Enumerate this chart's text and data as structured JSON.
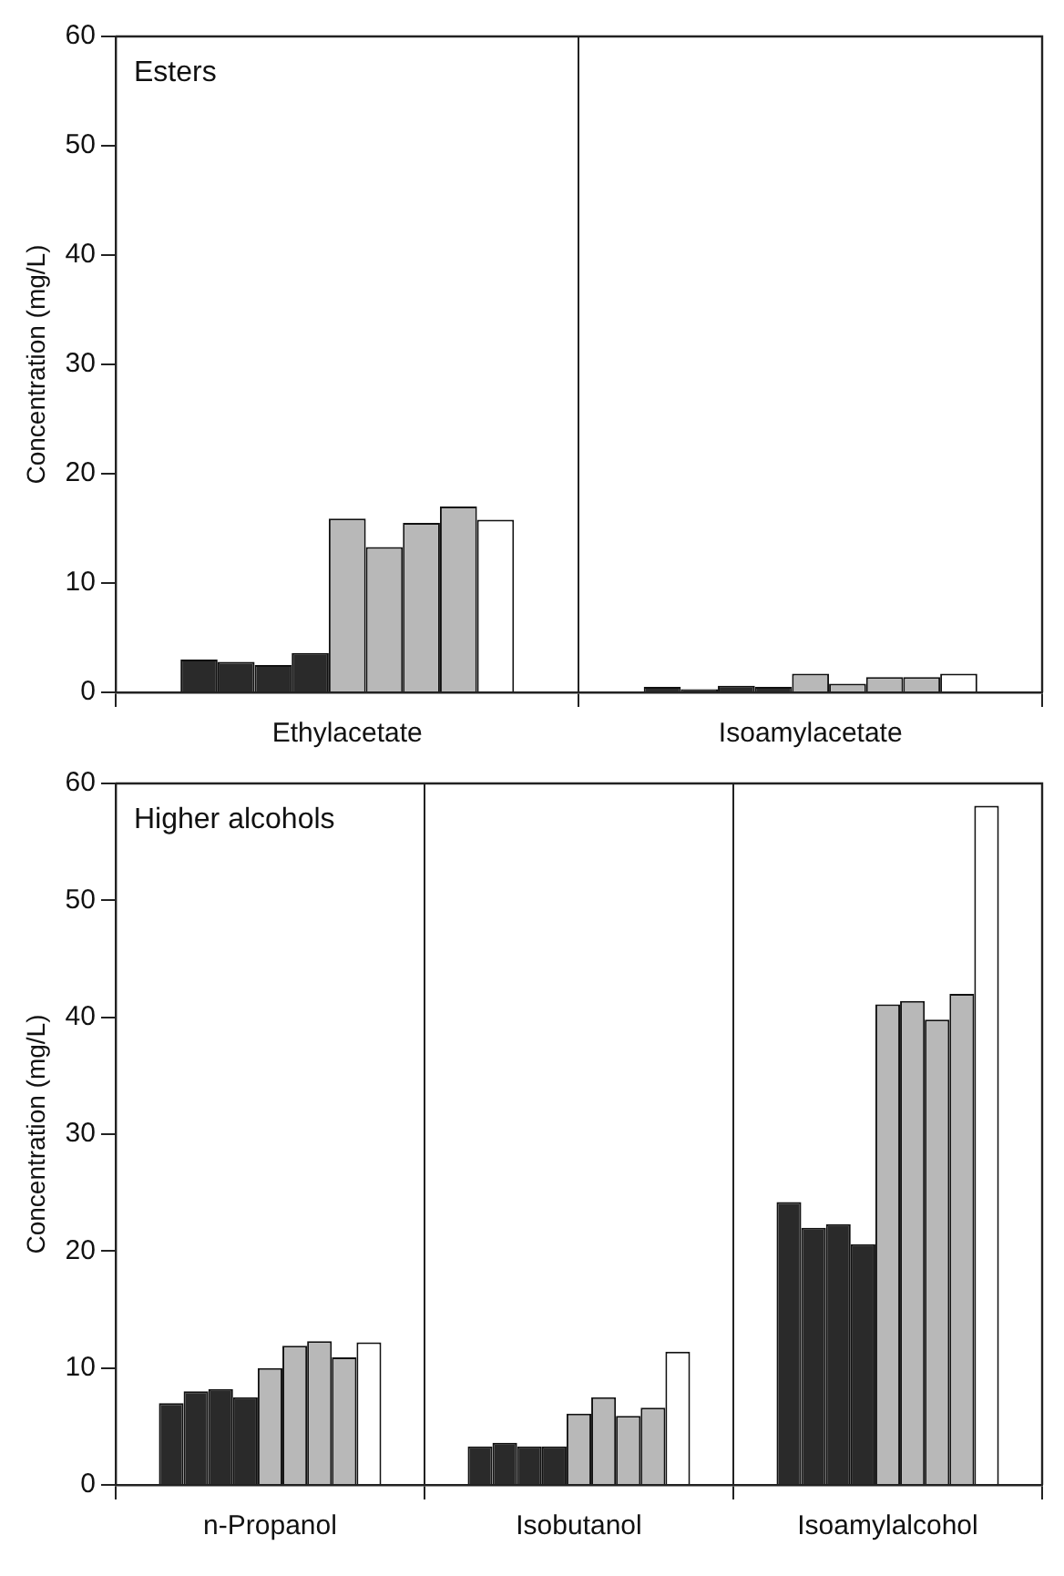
{
  "chart_data": [
    {
      "type": "bar",
      "title": "Esters",
      "ylabel": "Concentration (mg/L)",
      "categories": [
        "Ethylacetate",
        "Isoamylacetate"
      ],
      "ylim": [
        0,
        60
      ],
      "yticks": [
        0,
        10,
        20,
        30,
        40,
        50,
        60
      ],
      "grid": "x",
      "legend": false,
      "series": [
        {
          "color": "#2a2a2a",
          "values": [
            3.0,
            0.5
          ]
        },
        {
          "color": "#2a2a2a",
          "values": [
            2.8,
            0.3
          ]
        },
        {
          "color": "#2a2a2a",
          "values": [
            2.5,
            0.6
          ]
        },
        {
          "color": "#2a2a2a",
          "values": [
            3.6,
            0.5
          ]
        },
        {
          "color": "#b8b8b8",
          "values": [
            15.9,
            1.7
          ]
        },
        {
          "color": "#b8b8b8",
          "values": [
            13.3,
            0.8
          ]
        },
        {
          "color": "#b8b8b8",
          "values": [
            15.5,
            1.4
          ]
        },
        {
          "color": "#b8b8b8",
          "values": [
            17.0,
            1.4
          ]
        },
        {
          "color": "#ffffff",
          "values": [
            15.8,
            1.7
          ]
        }
      ]
    },
    {
      "type": "bar",
      "title": "Higher alcohols",
      "ylabel": "Concentration (mg/L)",
      "categories": [
        "n-Propanol",
        "Isobutanol",
        "Isoamylalcohol"
      ],
      "ylim": [
        0,
        60
      ],
      "yticks": [
        0,
        10,
        20,
        30,
        40,
        50,
        60
      ],
      "grid": "x",
      "legend": false,
      "series": [
        {
          "color": "#2a2a2a",
          "values": [
            7.0,
            3.3,
            24.2
          ]
        },
        {
          "color": "#2a2a2a",
          "values": [
            8.0,
            3.6,
            22.0
          ]
        },
        {
          "color": "#2a2a2a",
          "values": [
            8.2,
            3.3,
            22.3
          ]
        },
        {
          "color": "#2a2a2a",
          "values": [
            7.5,
            3.3,
            20.6
          ]
        },
        {
          "color": "#b8b8b8",
          "values": [
            10.0,
            6.1,
            41.1
          ]
        },
        {
          "color": "#b8b8b8",
          "values": [
            11.9,
            7.5,
            41.4
          ]
        },
        {
          "color": "#b8b8b8",
          "values": [
            12.3,
            5.9,
            39.8
          ]
        },
        {
          "color": "#b8b8b8",
          "values": [
            10.9,
            6.6,
            42.0
          ]
        },
        {
          "color": "#ffffff",
          "values": [
            12.2,
            11.4,
            58.1
          ]
        }
      ]
    }
  ]
}
